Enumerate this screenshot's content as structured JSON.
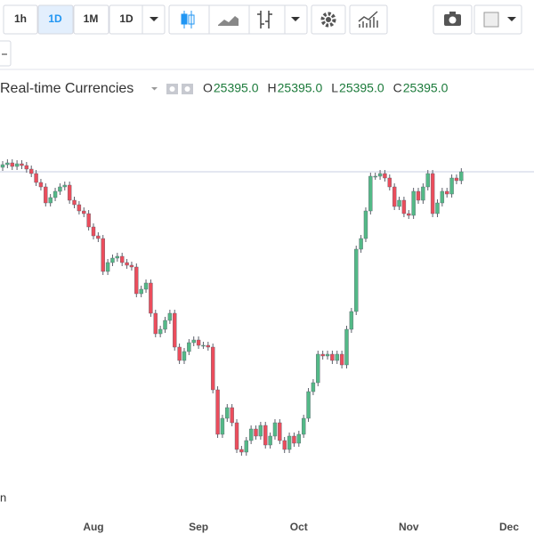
{
  "toolbar": {
    "intervals": [
      "1h",
      "1D",
      "1M",
      "1D"
    ]
  },
  "legend": {
    "title": "Real-time Currencies",
    "ohlc": [
      {
        "label": "O",
        "value": "25395.0"
      },
      {
        "label": "H",
        "value": "25395.0"
      },
      {
        "label": "L",
        "value": "25395.0"
      },
      {
        "label": "C",
        "value": "25395.0"
      }
    ]
  },
  "corner_text": "n",
  "chart_data": {
    "type": "candlestick",
    "categories": [
      null,
      null,
      null,
      null,
      null,
      null,
      null,
      null,
      null,
      null,
      null,
      null,
      null,
      null,
      null,
      null,
      null,
      null,
      null,
      "Aug",
      null,
      null,
      null,
      null,
      null,
      null,
      null,
      null,
      null,
      null,
      null,
      null,
      null,
      null,
      null,
      null,
      null,
      null,
      null,
      null,
      null,
      "Sep",
      null,
      null,
      null,
      null,
      null,
      null,
      null,
      null,
      null,
      null,
      null,
      null,
      null,
      null,
      null,
      null,
      null,
      null,
      null,
      null,
      "Oct",
      null,
      null,
      null,
      null,
      null,
      null,
      null,
      null,
      null,
      null,
      null,
      null,
      null,
      null,
      null,
      null,
      null,
      null,
      null,
      null,
      null,
      null,
      "Nov",
      null,
      null,
      null,
      null,
      null,
      null,
      null,
      null,
      null,
      null,
      null,
      null,
      null,
      null,
      null,
      null,
      null,
      null,
      null,
      null,
      "Dec"
    ],
    "open": [
      25445,
      25475,
      25495,
      25455,
      25485,
      25465,
      25425,
      25375,
      25275,
      25225,
      25045,
      25105,
      25175,
      25225,
      25245,
      25075,
      25025,
      24955,
      24925,
      24775,
      24675,
      24645,
      24275,
      24375,
      24425,
      24445,
      24375,
      24345,
      24325,
      24025,
      24075,
      24145,
      23805,
      23575,
      23625,
      23725,
      23805,
      23425,
      23275,
      23375,
      23475,
      23505,
      23445,
      23445,
      23425,
      22945,
      22445,
      22625,
      22745,
      22575,
      22275,
      22245,
      22375,
      22505,
      22425,
      22545,
      22325,
      22425,
      22575,
      22375,
      22275,
      22425,
      22345,
      22445,
      22625,
      22925,
      23025,
      23345,
      23325,
      23345,
      23275,
      23345,
      23225,
      23625,
      23825,
      24525,
      24645,
      24955,
      25345,
      25345,
      25375,
      25325,
      25225,
      25005,
      25075,
      24925,
      24905,
      25175,
      25075,
      25225,
      25375,
      24925,
      25045,
      25175,
      25145,
      25325,
      25295,
      null,
      null,
      null,
      null,
      null,
      null,
      null,
      null,
      null,
      null
    ],
    "high": [
      25515,
      25535,
      25535,
      25525,
      25525,
      25505,
      25465,
      25415,
      25315,
      25265,
      25145,
      25215,
      25265,
      25285,
      25285,
      25115,
      25065,
      24995,
      24965,
      24815,
      24715,
      24685,
      24415,
      24465,
      24485,
      24485,
      24415,
      24385,
      24365,
      24115,
      24185,
      24185,
      23845,
      23665,
      23765,
      23845,
      23845,
      23465,
      23415,
      23515,
      23545,
      23545,
      23485,
      23485,
      23465,
      22985,
      22665,
      22785,
      22785,
      22615,
      22315,
      22415,
      22545,
      22545,
      22585,
      22585,
      22465,
      22615,
      22615,
      22415,
      22465,
      22465,
      22485,
      22665,
      22965,
      23065,
      23385,
      23385,
      23385,
      23385,
      23385,
      23385,
      23665,
      23865,
      24565,
      24685,
      24995,
      25385,
      25385,
      25415,
      25415,
      25365,
      25265,
      25115,
      25115,
      24965,
      25215,
      25215,
      25265,
      25415,
      25415,
      25085,
      25215,
      25215,
      25365,
      25365,
      25435,
      null,
      null,
      null,
      null,
      null,
      null,
      null,
      null,
      null,
      null
    ],
    "low": [
      25405,
      25435,
      25415,
      25415,
      25425,
      25385,
      25335,
      25235,
      25185,
      25005,
      25005,
      25065,
      25135,
      25185,
      25035,
      24985,
      24915,
      24885,
      24735,
      24635,
      24605,
      24235,
      24235,
      24335,
      24385,
      24335,
      24305,
      24285,
      23985,
      23985,
      24035,
      23765,
      23535,
      23535,
      23585,
      23685,
      23385,
      23235,
      23235,
      23335,
      23435,
      23405,
      23405,
      23385,
      22905,
      22405,
      22405,
      22585,
      22535,
      22235,
      22205,
      22205,
      22335,
      22385,
      22385,
      22285,
      22285,
      22385,
      22335,
      22235,
      22235,
      22305,
      22305,
      22405,
      22585,
      22885,
      22985,
      23285,
      23285,
      23235,
      23235,
      23185,
      23185,
      23585,
      23785,
      24485,
      24605,
      24915,
      25305,
      25305,
      25285,
      25185,
      24965,
      24965,
      24885,
      24865,
      24865,
      25035,
      25035,
      25185,
      24885,
      24885,
      25005,
      25105,
      25105,
      25255,
      25255,
      null,
      null,
      null,
      null,
      null,
      null,
      null,
      null,
      null,
      null
    ],
    "close": [
      25475,
      25495,
      25455,
      25485,
      25465,
      25425,
      25375,
      25275,
      25225,
      25045,
      25105,
      25175,
      25225,
      25245,
      25075,
      25025,
      24955,
      24925,
      24775,
      24675,
      24645,
      24275,
      24375,
      24425,
      24445,
      24375,
      24345,
      24325,
      24025,
      24075,
      24145,
      23805,
      23575,
      23625,
      23725,
      23805,
      23425,
      23275,
      23375,
      23475,
      23505,
      23445,
      23445,
      23425,
      22945,
      22445,
      22625,
      22745,
      22575,
      22275,
      22245,
      22375,
      22505,
      22425,
      22545,
      22325,
      22425,
      22575,
      22375,
      22275,
      22425,
      22345,
      22445,
      22625,
      22925,
      23025,
      23345,
      23325,
      23345,
      23275,
      23345,
      23225,
      23625,
      23825,
      24525,
      24645,
      24955,
      25345,
      25345,
      25375,
      25325,
      25225,
      25005,
      25075,
      24925,
      24905,
      25175,
      25075,
      25225,
      25375,
      24925,
      25045,
      25175,
      25145,
      25325,
      25295,
      25395,
      null,
      null,
      null,
      null,
      null,
      null,
      null,
      null,
      null,
      null
    ],
    "ylim": [
      21725,
      25925
    ],
    "up_color": "#53b987",
    "down_color": "#eb4d5c",
    "wick_color": "#5d606b",
    "price_line_color": "#c9cfe3"
  }
}
